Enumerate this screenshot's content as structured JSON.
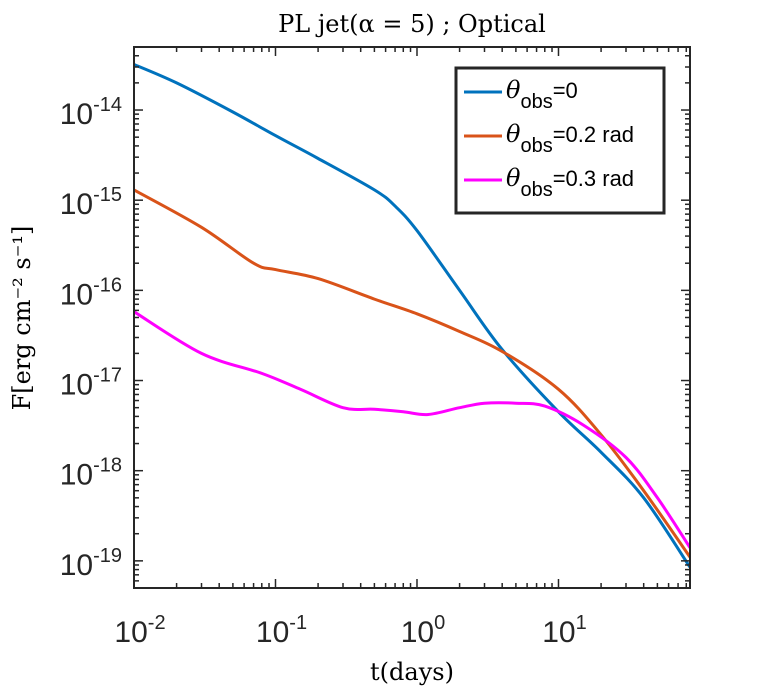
{
  "chart_data": {
    "type": "line",
    "title": "PL jet(α = 5) ; Optical",
    "xlabel": "t(days)",
    "ylabel": "F[erg cm⁻² s⁻¹]",
    "xscale": "log",
    "yscale": "log",
    "xlim": [
      0.01,
      85
    ],
    "ylim": [
      5e-20,
      5e-14
    ],
    "xticks": [
      {
        "value": 0.01,
        "base": "10",
        "exp": "-2"
      },
      {
        "value": 0.1,
        "base": "10",
        "exp": "-1"
      },
      {
        "value": 1,
        "base": "10",
        "exp": "0"
      },
      {
        "value": 10,
        "base": "10",
        "exp": "1"
      }
    ],
    "yticks": [
      {
        "value": 1e-19,
        "base": "10",
        "exp": "-19"
      },
      {
        "value": 1e-18,
        "base": "10",
        "exp": "-18"
      },
      {
        "value": 1e-17,
        "base": "10",
        "exp": "-17"
      },
      {
        "value": 1e-16,
        "base": "10",
        "exp": "-16"
      },
      {
        "value": 1e-15,
        "base": "10",
        "exp": "-15"
      },
      {
        "value": 1e-14,
        "base": "10",
        "exp": "-14"
      }
    ],
    "legend_position": "top-right",
    "series": [
      {
        "name": "θ obs=0",
        "label_symbol": "θ",
        "label_sub": "obs",
        "label_rest": "=0",
        "color": "#0072BD",
        "points": [
          [
            0.01,
            3.2e-14
          ],
          [
            0.02,
            2e-14
          ],
          [
            0.05,
            9.5e-15
          ],
          [
            0.1,
            5.2e-15
          ],
          [
            0.2,
            2.9e-15
          ],
          [
            0.5,
            1.3e-15
          ],
          [
            0.7,
            8.6e-16
          ],
          [
            1,
            4.6e-16
          ],
          [
            2,
            1e-16
          ],
          [
            4,
            2.2e-17
          ],
          [
            10,
            4.5e-18
          ],
          [
            20,
            1.6e-18
          ],
          [
            40,
            5e-19
          ],
          [
            85,
            8.5e-20
          ]
        ]
      },
      {
        "name": "θ obs=0.2 rad",
        "label_symbol": "θ",
        "label_sub": "obs",
        "label_rest": "=0.2 rad",
        "color": "#D95319",
        "points": [
          [
            0.01,
            1.3e-15
          ],
          [
            0.03,
            5e-16
          ],
          [
            0.07,
            2e-16
          ],
          [
            0.1,
            1.7e-16
          ],
          [
            0.2,
            1.35e-16
          ],
          [
            0.5,
            8e-17
          ],
          [
            1,
            5.5e-17
          ],
          [
            2,
            3.5e-17
          ],
          [
            4,
            2.1e-17
          ],
          [
            10,
            8e-18
          ],
          [
            20,
            2.5e-18
          ],
          [
            40,
            6e-19
          ],
          [
            85,
            1.1e-19
          ]
        ]
      },
      {
        "name": "θ obs=0.3 rad",
        "label_symbol": "θ",
        "label_sub": "obs",
        "label_rest": "=0.3 rad",
        "color": "#FF00FF",
        "points": [
          [
            0.01,
            5.8e-17
          ],
          [
            0.03,
            2e-17
          ],
          [
            0.08,
            1.2e-17
          ],
          [
            0.15,
            8e-18
          ],
          [
            0.3,
            5e-18
          ],
          [
            0.5,
            4.8e-18
          ],
          [
            0.8,
            4.5e-18
          ],
          [
            1.2,
            4.2e-18
          ],
          [
            2,
            5e-18
          ],
          [
            3,
            5.6e-18
          ],
          [
            5,
            5.6e-18
          ],
          [
            8,
            5.2e-18
          ],
          [
            15,
            3.2e-18
          ],
          [
            30,
            1.4e-18
          ],
          [
            50,
            5e-19
          ],
          [
            85,
            1.4e-19
          ]
        ]
      }
    ]
  }
}
